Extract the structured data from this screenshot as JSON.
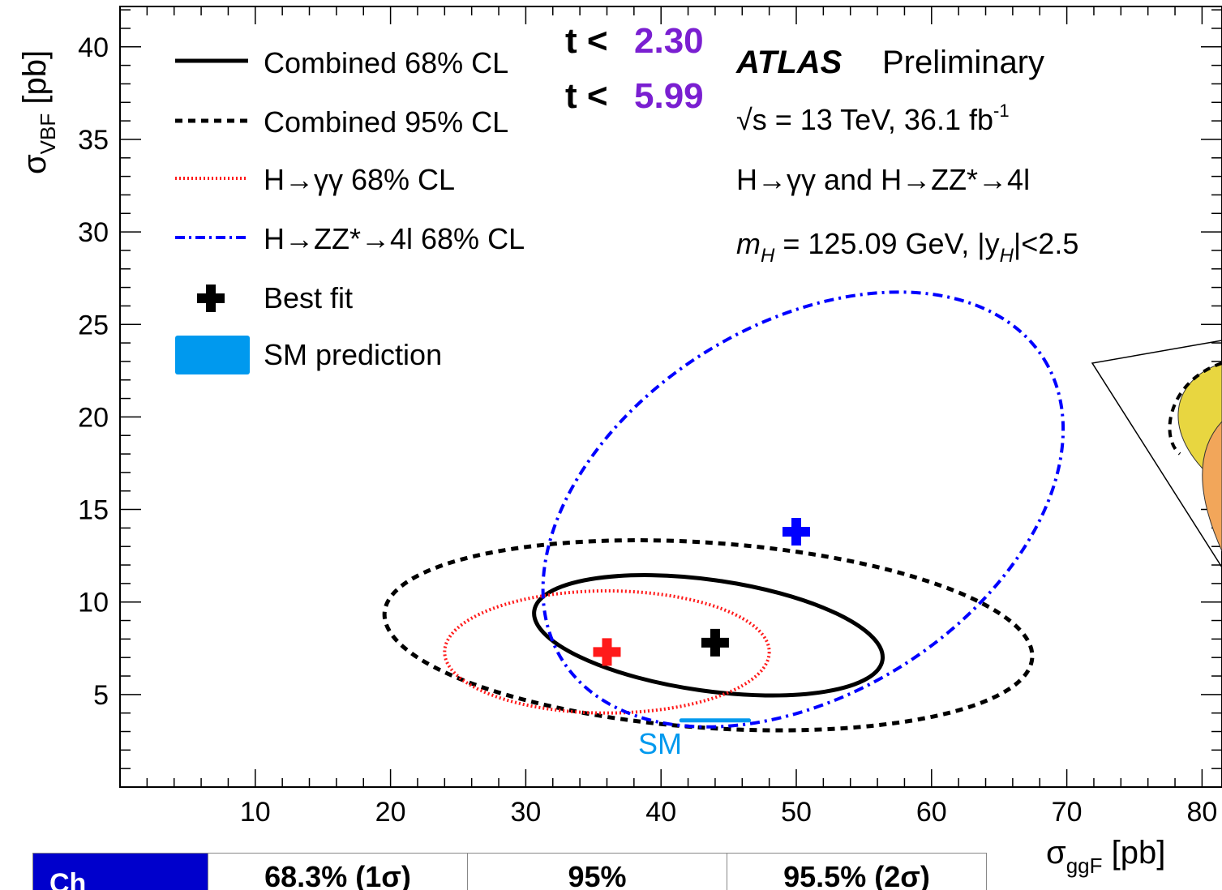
{
  "plot": {
    "x_axis_label": "σ",
    "x_axis_sub": "ggF",
    "x_axis_unit": " [pb]",
    "y_axis_label": "σ",
    "y_axis_sub": "VBF",
    "y_axis_unit": " [pb]",
    "x_ticks": [
      "10",
      "20",
      "30",
      "40",
      "50",
      "60",
      "70",
      "80"
    ],
    "y_ticks": [
      "5",
      "10",
      "15",
      "20",
      "25",
      "30",
      "35",
      "40"
    ]
  },
  "legend": {
    "combined_68": "Combined 68% CL",
    "combined_95": "Combined 95% CL",
    "gg_68": "H→γγ 68% CL",
    "zz_68": "H→ZZ*→4l 68% CL",
    "best_fit": "Best fit",
    "sm_prediction": "SM prediction"
  },
  "thresholds": {
    "symbol": "t <",
    "value_68": "2.30",
    "value_95": "5.99",
    "color": "#7a1fd1"
  },
  "annotations": {
    "atlas": "ATLAS",
    "preliminary": "Preliminary",
    "energy": "√s = 13 TeV, 36.1 fb",
    "energy_sup": "-1",
    "channels": "H→γγ and H→ZZ*→4l",
    "mass": "m",
    "mass_sub": "H",
    "mass_rest": " = 125.09 GeV, |y",
    "rapidity_sub": "H",
    "rapidity_rest": "|<2.5",
    "sm_label": "SM"
  },
  "table": {
    "first_cell": "Ch",
    "col1": "68.3% (1σ)",
    "col2": "95%",
    "col3": "95.5% (2σ)"
  },
  "chart_data": {
    "type": "scatter",
    "xlabel": "σggF [pb]",
    "ylabel": "σVBF [pb]",
    "xlim": [
      0,
      80
    ],
    "ylim": [
      0,
      42
    ],
    "points": [
      {
        "name": "Combined best fit",
        "x": 44,
        "y": 7.8,
        "color": "#000000"
      },
      {
        "name": "H→γγ best fit",
        "x": 36,
        "y": 7.3,
        "color": "#ff1a1a"
      },
      {
        "name": "H→ZZ*→4l best fit",
        "x": 50,
        "y": 13.8,
        "color": "#0000ff"
      }
    ],
    "contours": [
      {
        "name": "Combined 68% CL",
        "cx": 43.5,
        "cy": 8.2,
        "rx": 13,
        "ry": 3,
        "rotate_deg": 8,
        "style": "solid",
        "color": "#000000"
      },
      {
        "name": "Combined 95% CL",
        "cx": 43.5,
        "cy": 8.2,
        "rx": 24,
        "ry": 5,
        "rotate_deg": 4,
        "style": "dashed",
        "color": "#000000"
      },
      {
        "name": "H→γγ 68% CL",
        "cx": 36,
        "cy": 7.3,
        "rx": 12,
        "ry": 3.3,
        "rotate_deg": 0,
        "style": "dotted",
        "color": "#ff1a1a"
      },
      {
        "name": "H→ZZ*→4l 68% CL",
        "cx": 50.5,
        "cy": 15,
        "rx": 21,
        "ry": 10,
        "rotate_deg": -32,
        "style": "dashdot",
        "color": "#0000ff"
      }
    ],
    "sm_prediction": {
      "x": [
        41.5,
        46.5
      ],
      "y": 3.6,
      "color": "#0099ee"
    }
  }
}
